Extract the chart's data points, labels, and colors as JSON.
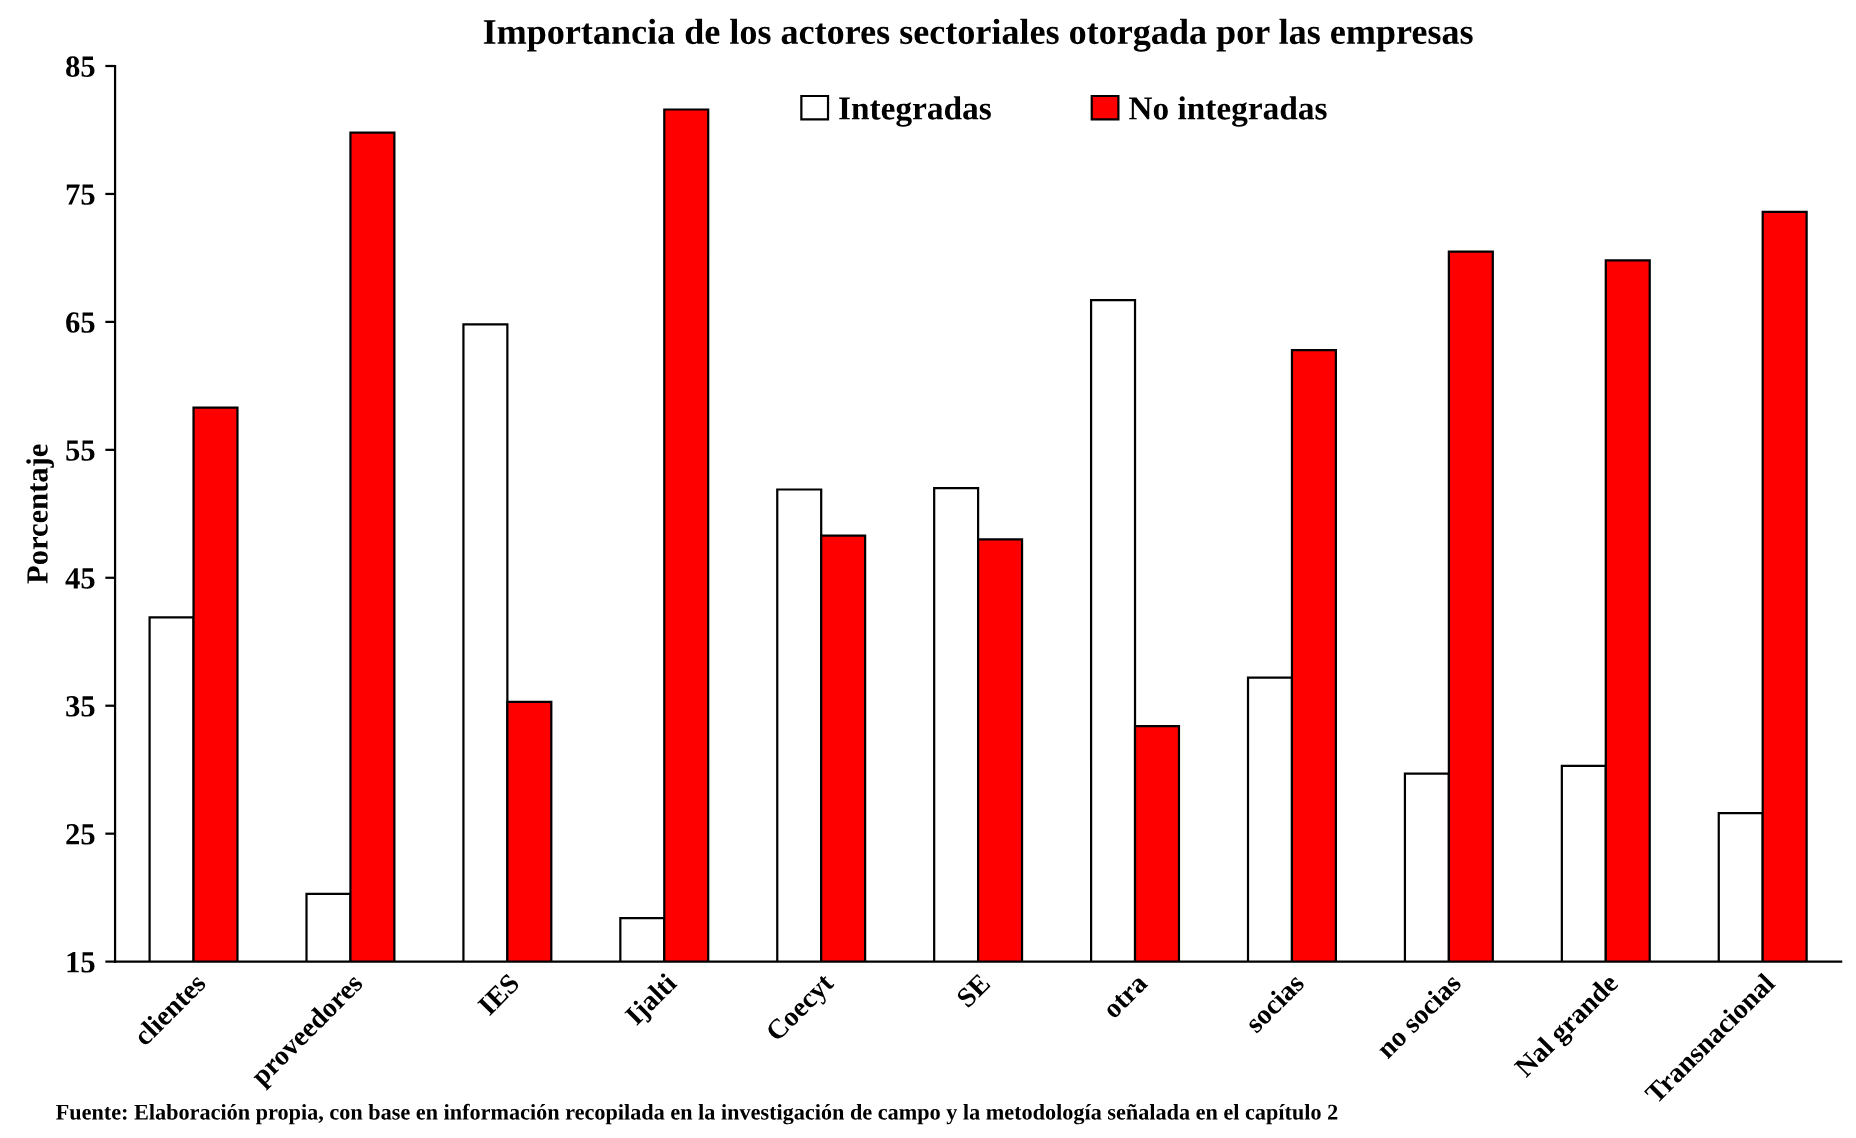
{
  "chart_data": {
    "type": "bar",
    "title": "Importancia de los actores sectoriales otorgada por las empresas",
    "ylabel": "Porcentaje",
    "categories": [
      "clientes",
      "proveedores",
      "IES",
      "Ijalti",
      "Coecyt",
      "SE",
      "otra",
      "socias",
      "no socias",
      "Nal grande",
      "Transnacional"
    ],
    "series": [
      {
        "name": "Integradas",
        "color": "#ffffff",
        "values": [
          41.9,
          20.3,
          64.8,
          18.4,
          51.9,
          52.0,
          66.7,
          37.2,
          29.7,
          30.3,
          26.6
        ]
      },
      {
        "name": "No integradas",
        "color": "#ff0000",
        "values": [
          58.3,
          79.8,
          35.3,
          81.6,
          48.3,
          48.0,
          33.4,
          62.8,
          70.5,
          69.8,
          73.6
        ]
      }
    ],
    "ylim": [
      15,
      85
    ],
    "yticks": [
      15,
      25,
      35,
      45,
      55,
      65,
      75,
      85
    ],
    "grid": false,
    "legend": "top",
    "annotations": [
      "Fuente: Elaboración propia, con base en información recopilada en la investigación de campo y la metodología señalada en el capítulo 2"
    ]
  }
}
